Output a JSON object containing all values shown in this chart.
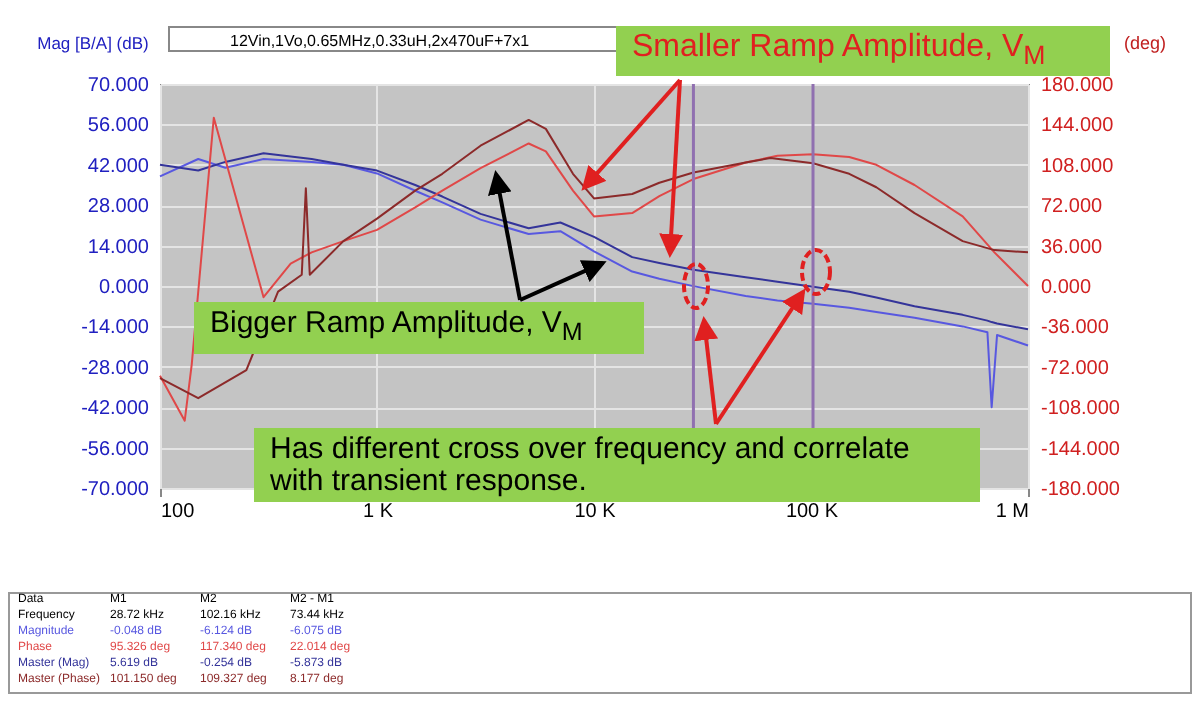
{
  "chart_data": {
    "type": "line",
    "title": "12Vin,1Vo,0.65MHz,0.33uH,2x470uF+7x1",
    "xlabel": null,
    "ylabel": "Mag [B/A] (dB)",
    "y2label": "(deg)",
    "log": "x",
    "grid": true,
    "legend": false,
    "x": [
      100,
      150,
      200,
      300,
      500,
      700,
      1000,
      1500,
      2000,
      3000,
      5000,
      7000,
      10000,
      15000,
      20000,
      28720,
      50000,
      70000,
      102160,
      150000,
      200000,
      300000,
      500000,
      650000,
      680000,
      720000,
      1000000
    ],
    "series": [
      {
        "name": "Magnitude",
        "color": "#5858e0",
        "values": [
          38,
          44,
          41,
          44,
          43,
          42,
          39,
          33,
          29,
          23,
          18,
          19,
          12,
          5,
          2.5,
          -0.048,
          -3.5,
          -5,
          -6.124,
          -7.5,
          -9,
          -11,
          -14,
          -16,
          -42,
          -17,
          -20.6
        ]
      },
      {
        "name": "Phase",
        "color": "#e04848",
        "axis": "y2",
        "x": [
          100,
          130,
          140,
          177,
          300,
          400,
          500,
          700,
          1000,
          1500,
          2000,
          3000,
          5000,
          6000,
          8000,
          10000,
          15000,
          20000,
          28720,
          50000,
          70000,
          102160,
          150000,
          200000,
          300000,
          500000,
          700000,
          1000000
        ],
        "values": [
          -80,
          -120,
          -70,
          150,
          -10,
          20,
          30,
          40,
          50,
          70,
          85,
          105,
          127,
          120,
          85,
          62,
          65,
          80,
          95.326,
          110,
          116,
          117.34,
          115,
          108,
          90,
          62,
          30,
          0
        ]
      },
      {
        "name": "Master (Mag)",
        "color": "#34349a",
        "values": [
          42,
          40,
          43,
          46,
          44,
          42,
          40,
          35,
          31,
          25,
          20,
          22,
          17,
          10,
          8,
          5.619,
          3,
          1.5,
          -0.254,
          -2,
          -4,
          -7,
          -10,
          -12,
          -12.5,
          -13,
          -15
        ]
      },
      {
        "name": "Master (Phase)",
        "color": "#8c2a2a",
        "axis": "y2",
        "x": [
          100,
          150,
          250,
          350,
          450,
          470,
          490,
          700,
          1000,
          1500,
          2000,
          3000,
          5000,
          6000,
          8000,
          10000,
          15000,
          20000,
          28720,
          50000,
          65000,
          102160,
          150000,
          200000,
          300000,
          500000,
          700000,
          1000000
        ],
        "values": [
          -82,
          -100,
          -75,
          -5,
          10,
          87,
          10,
          40,
          60,
          85,
          100,
          125,
          148,
          140,
          100,
          78,
          82,
          92,
          101.15,
          110,
          114,
          109.327,
          100,
          88,
          65,
          40,
          32,
          30
        ]
      }
    ],
    "xlim": [
      100,
      1000000
    ],
    "xticks": [
      {
        "value": 100,
        "label": "100"
      },
      {
        "value": 1000,
        "label": "1 K"
      },
      {
        "value": 10000,
        "label": "10 K"
      },
      {
        "value": 100000,
        "label": "100 K"
      },
      {
        "value": 1000000,
        "label": "1 M"
      }
    ],
    "ylim": [
      -70,
      70
    ],
    "yticks": [
      {
        "value": 70,
        "label": "70.000"
      },
      {
        "value": 56,
        "label": "56.000"
      },
      {
        "value": 42,
        "label": "42.000"
      },
      {
        "value": 28,
        "label": "28.000"
      },
      {
        "value": 14,
        "label": "14.000"
      },
      {
        "value": 0,
        "label": "0.000"
      },
      {
        "value": -14,
        "label": "-14.000"
      },
      {
        "value": -28,
        "label": "-28.000"
      },
      {
        "value": -42,
        "label": "-42.000"
      },
      {
        "value": -56,
        "label": "-56.000"
      },
      {
        "value": -70,
        "label": "-70.000"
      }
    ],
    "y2lim": [
      -180,
      180
    ],
    "y2ticks": [
      {
        "value": 180,
        "label": "180.000"
      },
      {
        "value": 144,
        "label": "144.000"
      },
      {
        "value": 108,
        "label": "108.000"
      },
      {
        "value": 72,
        "label": "72.000"
      },
      {
        "value": 36,
        "label": "36.000"
      },
      {
        "value": 0,
        "label": "0.000"
      },
      {
        "value": -36,
        "label": "-36.000"
      },
      {
        "value": -72,
        "label": "-72.000"
      },
      {
        "value": -108,
        "label": "-108.000"
      },
      {
        "value": -144,
        "label": "-144.000"
      },
      {
        "value": -180,
        "label": "-180.000"
      }
    ],
    "ref_lines": [
      {
        "axis": "x",
        "value": 28720,
        "color": "#9070b0"
      },
      {
        "axis": "x",
        "value": 102160,
        "color": "#9070b0"
      }
    ],
    "annotations": [
      {
        "text": "Smaller Ramp Amplitude, V$_{M}$",
        "x": 9000,
        "y": 34
      },
      {
        "text": "Bigger Ramp Amplitude, V$_{M}$",
        "x": 11000,
        "y": 8
      },
      {
        "text": "Has different cross over frequency and correlate with transient response.",
        "x": 92000,
        "y": -2
      },
      "Data",
      "M1",
      "M2",
      "M2 - M1",
      "Frequency",
      "28.72 kHz",
      "102.16 kHz",
      "73.44 kHz",
      "-0.048 dB",
      "-6.124 dB",
      "-6.075 dB",
      "95.326 deg",
      "117.340 deg",
      "22.014 deg",
      "5.619 dB",
      "-0.254 dB",
      "-5.873 dB",
      "101.150 deg",
      "109.327 deg",
      "8.177 deg"
    ]
  }
}
